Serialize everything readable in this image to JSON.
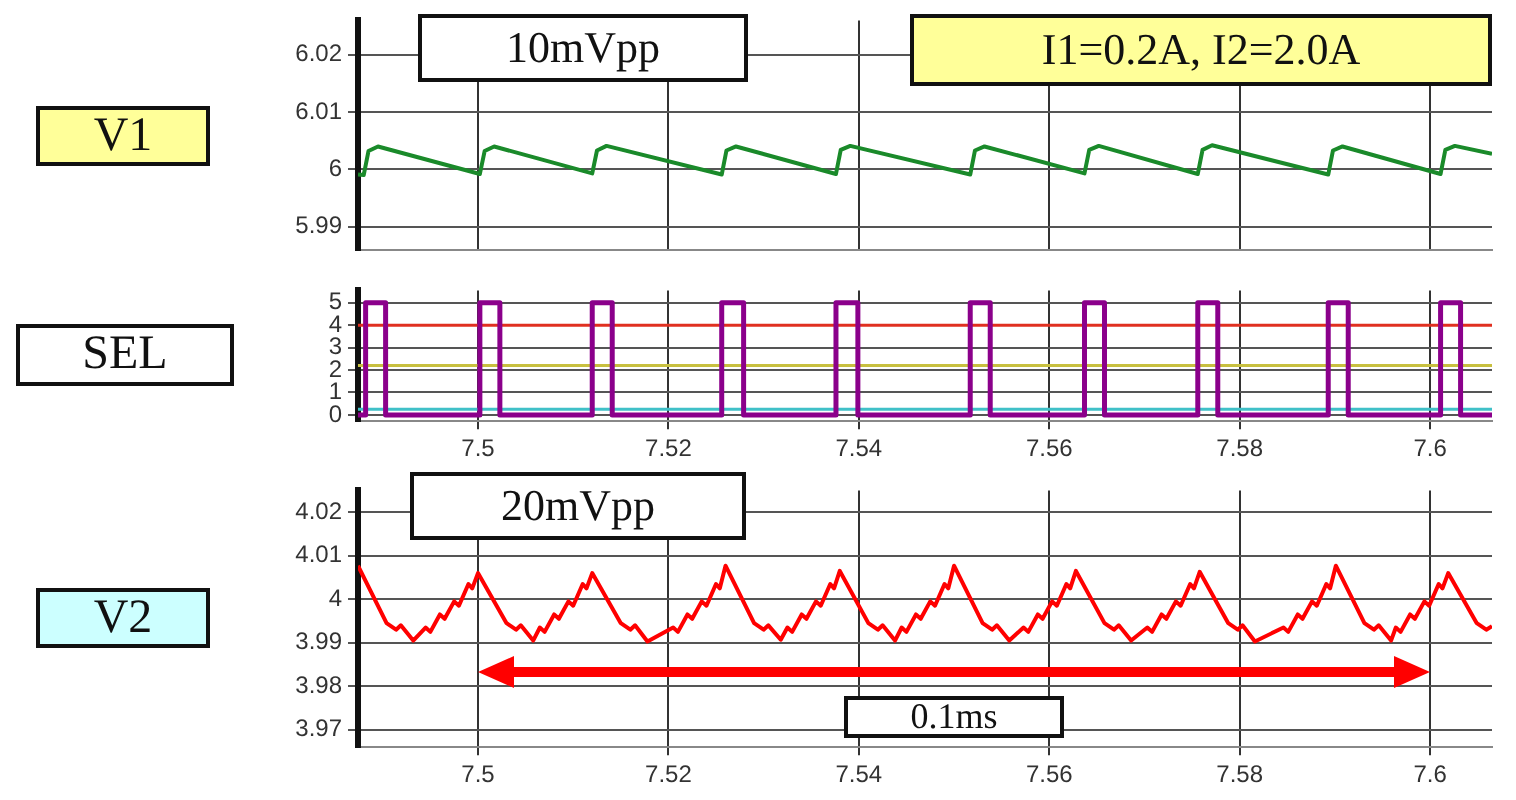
{
  "chart_data": [
    {
      "type": "line",
      "ylabel": "V1",
      "annotations": [
        "10mVpp",
        "I1=0.2A, I2=2.0A"
      ],
      "xlim": [
        7.4874,
        7.6065
      ],
      "xticks": [
        7.5,
        7.52,
        7.54,
        7.56,
        7.58,
        7.6
      ],
      "ylim": [
        5.986,
        6.026
      ],
      "yticks": [
        5.99,
        6,
        6.01,
        6.02
      ],
      "grid": true,
      "legend": false,
      "tick_labels": "y",
      "x": [
        7.4874,
        7.488,
        7.4885,
        7.4895,
        7.5002,
        7.5007,
        7.5017,
        7.512,
        7.5125,
        7.5135,
        7.5256,
        7.5261,
        7.5271,
        7.5376,
        7.5381,
        7.5391,
        7.5517,
        7.5522,
        7.5532,
        7.5637,
        7.5642,
        7.5652,
        7.5756,
        7.5761,
        7.5771,
        7.5893,
        7.5898,
        7.5908,
        7.6011,
        7.6016,
        7.6026,
        7.6065
      ],
      "series": [
        {
          "color": "#1a8a2a",
          "values": [
            5.9991,
            5.999,
            6.0032,
            6.004,
            5.9992,
            6.0032,
            6.004,
            5.9993,
            6.0033,
            6.0041,
            5.9991,
            6.0033,
            6.004,
            5.9992,
            6.0034,
            6.0041,
            5.9991,
            6.0033,
            6.004,
            5.9993,
            6.0034,
            6.0041,
            5.9992,
            6.0034,
            6.0042,
            5.9991,
            6.0033,
            6.004,
            5.9992,
            6.0034,
            6.0041,
            6.0027
          ]
        }
      ]
    },
    {
      "type": "step",
      "ylabel": "SEL",
      "xlim": [
        7.4874,
        7.6065
      ],
      "xticks": [
        7.5,
        7.52,
        7.54,
        7.56,
        7.58,
        7.6
      ],
      "ylim": [
        -0.28,
        5.55
      ],
      "yticks": [
        0,
        1,
        2,
        3,
        4,
        5
      ],
      "grid": true,
      "legend": false,
      "x": [
        7.4874,
        7.4882,
        7.4903,
        7.5002,
        7.5023,
        7.512,
        7.5141,
        7.5256,
        7.5279,
        7.5376,
        7.5399,
        7.5517,
        7.5538,
        7.5637,
        7.5658,
        7.5756,
        7.5777,
        7.5893,
        7.5914,
        7.6011,
        7.6032,
        7.6065
      ],
      "series": [
        {
          "color": "#8b008b",
          "values": [
            0,
            5,
            0,
            5,
            0,
            5,
            0,
            5,
            0,
            5,
            0,
            5,
            0,
            5,
            0,
            5,
            0,
            5,
            0,
            5,
            0,
            0
          ]
        }
      ],
      "ref_lines": [
        {
          "axis": "y",
          "value": 4,
          "color": "#e03020"
        },
        {
          "axis": "y",
          "value": 2.2,
          "color": "#c8c040"
        },
        {
          "axis": "y",
          "value": 0.25,
          "color": "#40c0c8"
        }
      ]
    },
    {
      "type": "line",
      "ylabel": "V2",
      "annotations": [
        "20mVpp",
        "0.1ms"
      ],
      "xlim": [
        7.4874,
        7.6065
      ],
      "xticks": [
        7.5,
        7.52,
        7.54,
        7.56,
        7.58,
        7.6
      ],
      "ylim": [
        3.966,
        4.025
      ],
      "yticks": [
        3.97,
        3.98,
        3.99,
        4,
        4.01,
        4.02
      ],
      "grid": true,
      "legend": false,
      "x": [
        7.4874,
        7.4904,
        7.4914,
        7.4919,
        7.4932,
        7.4945,
        7.495,
        7.496,
        7.4965,
        7.4975,
        7.498,
        7.499,
        7.4994,
        7.5,
        7.503,
        7.504,
        7.5045,
        7.5058,
        7.5065,
        7.507,
        7.508,
        7.5085,
        7.5095,
        7.51,
        7.511,
        7.5114,
        7.512,
        7.515,
        7.516,
        7.5165,
        7.5178,
        7.5205,
        7.521,
        7.522,
        7.5225,
        7.5235,
        7.524,
        7.525,
        7.5254,
        7.526,
        7.529,
        7.53,
        7.5305,
        7.5318,
        7.5325,
        7.533,
        7.534,
        7.5345,
        7.5355,
        7.536,
        7.537,
        7.5374,
        7.538,
        7.541,
        7.542,
        7.5425,
        7.5438,
        7.5445,
        7.545,
        7.546,
        7.5465,
        7.5475,
        7.548,
        7.549,
        7.5494,
        7.55,
        7.553,
        7.554,
        7.5545,
        7.5558,
        7.5573,
        7.5578,
        7.5588,
        7.5593,
        7.5603,
        7.5608,
        7.5618,
        7.5622,
        7.5628,
        7.5658,
        7.5668,
        7.5673,
        7.5686,
        7.5703,
        7.5708,
        7.5718,
        7.5723,
        7.5733,
        7.5738,
        7.5748,
        7.5752,
        7.5758,
        7.5788,
        7.5798,
        7.5803,
        7.5816,
        7.5846,
        7.5851,
        7.5861,
        7.5866,
        7.5876,
        7.5881,
        7.5891,
        7.5895,
        7.5901,
        7.5931,
        7.5941,
        7.5946,
        7.5959,
        7.5964,
        7.5969,
        7.5979,
        7.5984,
        7.5994,
        7.5999,
        7.6009,
        7.6013,
        7.6019,
        7.6049,
        7.6059,
        7.6065
      ],
      "series": [
        {
          "color": "#ff0000",
          "values": [
            4.0077,
            3.9945,
            3.993,
            3.994,
            3.9905,
            3.9935,
            3.9925,
            3.9965,
            3.9955,
            3.9995,
            3.9985,
            4.0035,
            4.0025,
            4.006,
            3.9945,
            3.993,
            3.994,
            3.9905,
            3.9935,
            3.9925,
            3.9965,
            3.9955,
            3.9995,
            3.9985,
            4.0035,
            4.0025,
            4.006,
            3.9945,
            3.993,
            3.994,
            3.9903,
            3.9935,
            3.9925,
            3.9965,
            3.9955,
            3.9995,
            3.9985,
            4.0035,
            4.0025,
            4.0077,
            3.9945,
            3.993,
            3.994,
            3.9907,
            3.9935,
            3.9925,
            3.9965,
            3.9955,
            3.9995,
            3.9985,
            4.0035,
            4.0025,
            4.0065,
            3.9945,
            3.993,
            3.994,
            3.9905,
            3.9935,
            3.9925,
            3.9965,
            3.9955,
            3.9995,
            3.9985,
            4.0035,
            4.0025,
            4.0077,
            3.9945,
            3.993,
            3.994,
            3.9905,
            3.9935,
            3.9925,
            3.9965,
            3.9955,
            3.9995,
            3.9985,
            4.0035,
            4.0025,
            4.0065,
            3.9945,
            3.993,
            3.994,
            3.9905,
            3.9935,
            3.9925,
            3.9965,
            3.9955,
            3.9995,
            3.9985,
            4.0035,
            4.0025,
            4.0063,
            3.9945,
            3.993,
            3.994,
            3.9903,
            3.9935,
            3.9925,
            3.9965,
            3.9955,
            3.9995,
            3.9985,
            4.0035,
            4.0025,
            4.0077,
            3.9945,
            3.993,
            3.994,
            3.9905,
            3.9935,
            3.9925,
            3.9965,
            3.9955,
            3.9995,
            3.9985,
            4.0035,
            4.0025,
            4.006,
            3.9945,
            3.993,
            3.9938
          ]
        }
      ]
    }
  ]
}
